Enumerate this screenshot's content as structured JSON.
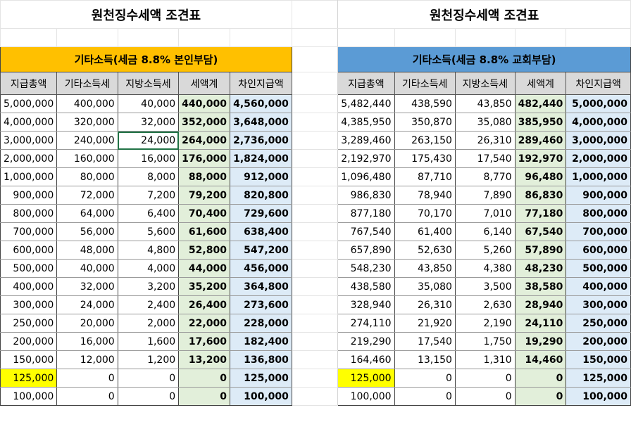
{
  "left": {
    "title": "원천징수세액 조견표",
    "banner": "기타소득(세금 8.8% 본인부담)",
    "headers": [
      "지급총액",
      "기타소득세",
      "지방소득세",
      "세액계",
      "차인지급액"
    ],
    "rows": [
      [
        "5,000,000",
        "400,000",
        "40,000",
        "440,000",
        "4,560,000"
      ],
      [
        "4,000,000",
        "320,000",
        "32,000",
        "352,000",
        "3,648,000"
      ],
      [
        "3,000,000",
        "240,000",
        "24,000",
        "264,000",
        "2,736,000"
      ],
      [
        "2,000,000",
        "160,000",
        "16,000",
        "176,000",
        "1,824,000"
      ],
      [
        "1,000,000",
        "80,000",
        "8,000",
        "88,000",
        "912,000"
      ],
      [
        "900,000",
        "72,000",
        "7,200",
        "79,200",
        "820,800"
      ],
      [
        "800,000",
        "64,000",
        "6,400",
        "70,400",
        "729,600"
      ],
      [
        "700,000",
        "56,000",
        "5,600",
        "61,600",
        "638,400"
      ],
      [
        "600,000",
        "48,000",
        "4,800",
        "52,800",
        "547,200"
      ],
      [
        "500,000",
        "40,000",
        "4,000",
        "44,000",
        "456,000"
      ],
      [
        "400,000",
        "32,000",
        "3,200",
        "35,200",
        "364,800"
      ],
      [
        "300,000",
        "24,000",
        "2,400",
        "26,400",
        "273,600"
      ],
      [
        "250,000",
        "20,000",
        "2,000",
        "22,000",
        "228,000"
      ],
      [
        "200,000",
        "16,000",
        "1,600",
        "17,600",
        "182,400"
      ],
      [
        "150,000",
        "12,000",
        "1,200",
        "13,200",
        "136,800"
      ],
      [
        "125,000",
        "0",
        "0",
        "0",
        "125,000"
      ],
      [
        "100,000",
        "0",
        "0",
        "0",
        "100,000"
      ]
    ]
  },
  "right": {
    "title": "원천징수세액 조견표",
    "banner": "기타소득(세금 8.8% 교회부담)",
    "headers": [
      "지급총액",
      "기타소득세",
      "지방소득세",
      "세액계",
      "차인지급액"
    ],
    "rows": [
      [
        "5,482,440",
        "438,590",
        "43,850",
        "482,440",
        "5,000,000"
      ],
      [
        "4,385,950",
        "350,870",
        "35,080",
        "385,950",
        "4,000,000"
      ],
      [
        "3,289,460",
        "263,150",
        "26,310",
        "289,460",
        "3,000,000"
      ],
      [
        "2,192,970",
        "175,430",
        "17,540",
        "192,970",
        "2,000,000"
      ],
      [
        "1,096,480",
        "87,710",
        "8,770",
        "96,480",
        "1,000,000"
      ],
      [
        "986,830",
        "78,940",
        "7,890",
        "86,830",
        "900,000"
      ],
      [
        "877,180",
        "70,170",
        "7,010",
        "77,180",
        "800,000"
      ],
      [
        "767,540",
        "61,400",
        "6,140",
        "67,540",
        "700,000"
      ],
      [
        "657,890",
        "52,630",
        "5,260",
        "57,890",
        "600,000"
      ],
      [
        "548,230",
        "43,850",
        "4,380",
        "48,230",
        "500,000"
      ],
      [
        "438,580",
        "35,080",
        "3,500",
        "38,580",
        "400,000"
      ],
      [
        "328,940",
        "26,310",
        "2,630",
        "28,940",
        "300,000"
      ],
      [
        "274,110",
        "21,920",
        "2,190",
        "24,110",
        "250,000"
      ],
      [
        "219,290",
        "17,540",
        "1,750",
        "19,290",
        "200,000"
      ],
      [
        "164,460",
        "13,150",
        "1,310",
        "14,460",
        "150,000"
      ],
      [
        "125,000",
        "0",
        "0",
        "0",
        "125,000"
      ],
      [
        "100,000",
        "0",
        "0",
        "0",
        "100,000"
      ]
    ]
  },
  "colors": {
    "left_banner": "#ffc000",
    "right_banner": "#5b9bd5",
    "header_fill": "#d9d9d9",
    "tax_fill": "#e2efda",
    "net_fill": "#ddebf7",
    "highlight": "#ffff00"
  }
}
